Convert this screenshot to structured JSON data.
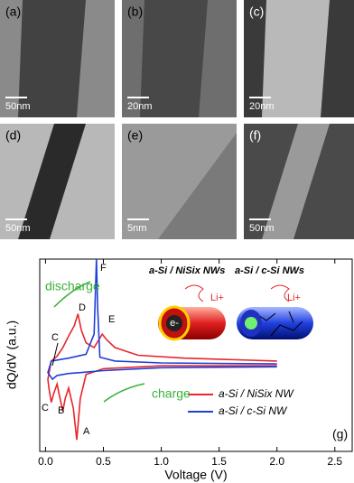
{
  "panels": [
    {
      "label": "(a)",
      "scale": "50nm"
    },
    {
      "label": "(b)",
      "scale": "20nm"
    },
    {
      "label": "(c)",
      "scale": "20nm"
    },
    {
      "label": "(d)",
      "scale": "50nm"
    },
    {
      "label": "(e)",
      "scale": "5nm"
    },
    {
      "label": "(f)",
      "scale": "50nm"
    }
  ],
  "chart_data": {
    "type": "line",
    "panel_label": "(g)",
    "x_label": "Voltage (V)",
    "y_label": "dQ/dV (a.u.)",
    "xlim": [
      -0.05,
      2.65
    ],
    "ylim": [
      -9,
      11
    ],
    "xticks": [
      {
        "value": 0,
        "label": "0.0"
      },
      0.5,
      {
        "value": 1,
        "label": "1.0"
      },
      1.5,
      {
        "value": 2,
        "label": "2.0"
      },
      2.5
    ],
    "legend": "lower right",
    "series": [
      {
        "name": "a-Si / NiSix NW",
        "color": "#e8262a",
        "x": [
          2.0,
          1.0,
          0.5,
          0.35,
          0.3,
          0.27,
          0.24,
          0.2,
          0.17,
          0.15,
          0.12,
          0.1,
          0.07,
          0.05,
          0.03,
          0.02,
          0.05,
          0.1,
          0.15,
          0.2,
          0.25,
          0.28,
          0.31,
          0.35,
          0.42,
          0.46,
          0.49,
          0.53,
          0.6,
          0.8,
          1.2,
          2.0
        ],
        "values": [
          -0.1,
          -0.1,
          -0.4,
          -1.0,
          -3.5,
          -7.8,
          -4.5,
          -2.4,
          -3.5,
          -4.8,
          -3.2,
          -2.0,
          -3.0,
          -3.9,
          -2.5,
          -1.5,
          0.4,
          0.9,
          1.8,
          3.0,
          4.1,
          5.3,
          3.6,
          2.3,
          1.8,
          2.6,
          3.2,
          2.6,
          1.8,
          1.0,
          0.7,
          0.4
        ]
      },
      {
        "name": "a-Si / c-Si NW",
        "color": "#1e3fd8",
        "x": [
          2.0,
          1.0,
          0.5,
          0.3,
          0.2,
          0.1,
          0.06,
          0.02,
          0.05,
          0.2,
          0.35,
          0.42,
          0.44,
          0.45,
          0.47,
          0.6,
          1.0,
          2.0
        ],
        "values": [
          -0.2,
          -0.3,
          -0.6,
          -0.8,
          -0.9,
          -1.1,
          -1.5,
          -0.8,
          0.4,
          0.7,
          1.1,
          3.2,
          11,
          6,
          0.8,
          0.4,
          0.2,
          0.1
        ]
      }
    ],
    "annotations": [
      "A",
      "B",
      "C",
      "C",
      "D",
      "E",
      "F",
      "discharge",
      "charge"
    ],
    "insets": [
      {
        "title": "a-Si / NiSix NWs",
        "ion": "Li+",
        "electron": "e-"
      },
      {
        "title": "a-Si / c-Si NWs",
        "ion": "Li+"
      }
    ]
  }
}
